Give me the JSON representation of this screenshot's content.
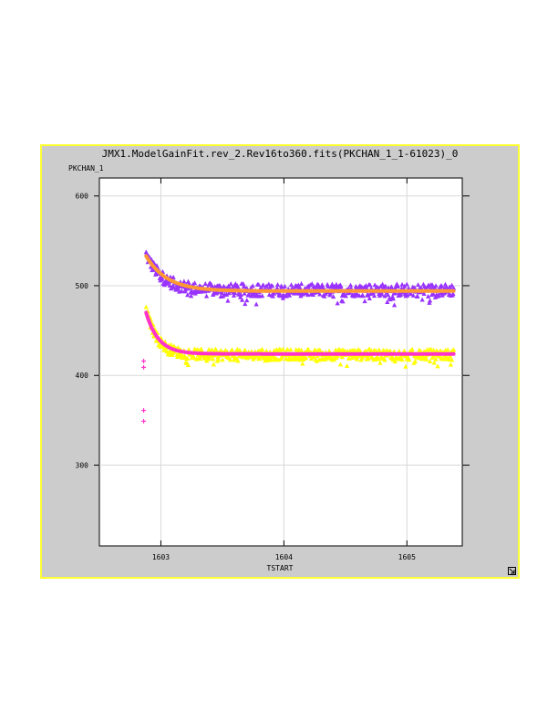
{
  "window": {
    "title": "JMX1.ModelGainFit.rev_2.Rev16to360.fits(PKCHAN_1_1-61023)_0",
    "border_color": "#ffff33",
    "background_color": "#cccccc"
  },
  "chart_data": {
    "type": "scatter",
    "xlabel": "TSTART",
    "ylabel": "PKCHAN_1",
    "xlim": [
      1602.5,
      1605.45
    ],
    "ylim": [
      210,
      620
    ],
    "x_ticks": [
      1603,
      1604,
      1605
    ],
    "x_tick_labels": [
      "1603",
      "1604",
      "1605"
    ],
    "y_ticks": [
      300,
      400,
      500,
      600
    ],
    "y_tick_labels": [
      "300",
      "400",
      "500",
      "600"
    ],
    "grid": true,
    "plot_background": "#ffffff",
    "series": [
      {
        "marker": "triangle",
        "color": "#9933ff",
        "points_description_sampled": true,
        "x_start": 1602.88,
        "x_end": 1605.38,
        "decay_from": 535,
        "decay_to": 495,
        "decay_tau": 0.13,
        "scatter": 7
      },
      {
        "marker": "line",
        "color": "#ff9933",
        "x_start": 1602.88,
        "x_end": 1605.38,
        "decay_from": 533,
        "decay_to": 494,
        "decay_tau": 0.17
      },
      {
        "marker": "triangle",
        "color": "#ffff00",
        "x_start": 1602.88,
        "x_end": 1605.38,
        "decay_from": 475,
        "decay_to": 423,
        "decay_tau": 0.09,
        "scatter": 6
      },
      {
        "marker": "line",
        "color": "#ff33cc",
        "x_start": 1602.88,
        "x_end": 1605.38,
        "decay_from": 470,
        "decay_to": 424,
        "decay_tau": 0.1
      },
      {
        "marker": "cross",
        "color": "#ff33cc",
        "points": [
          [
            1602.86,
            416
          ],
          [
            1602.86,
            409
          ],
          [
            1602.86,
            361
          ],
          [
            1602.86,
            349
          ]
        ]
      }
    ]
  }
}
